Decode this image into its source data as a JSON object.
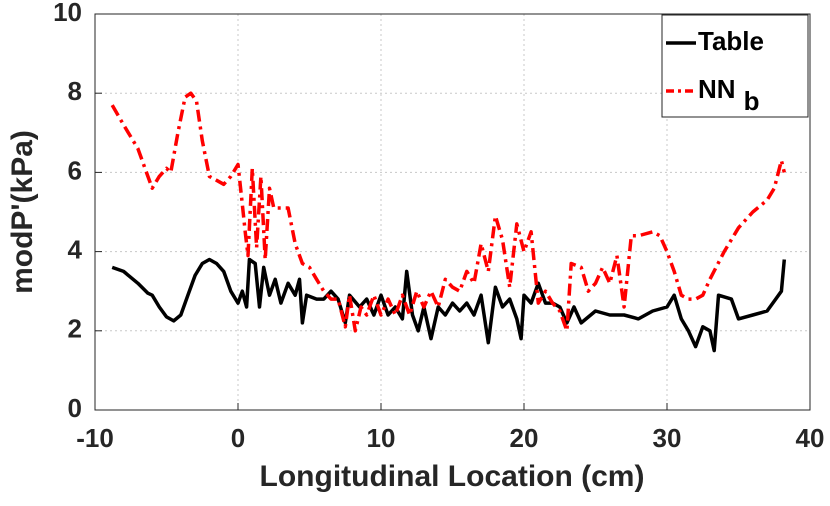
{
  "chart_data": {
    "type": "line",
    "xlabel": "Longitudinal Location (cm)",
    "ylabel": "modP'(kPa)",
    "xlim": [
      -10,
      40
    ],
    "xticks": [
      -10,
      0,
      10,
      20,
      30,
      40
    ],
    "ylim": [
      0,
      10
    ],
    "yticks": [
      0,
      2,
      4,
      6,
      8,
      10
    ],
    "grid": true,
    "legend_position": "upper right",
    "series": [
      {
        "name": "Table",
        "color": "#000000",
        "dash": "solid",
        "x": [
          -8.8,
          -8,
          -7,
          -6.3,
          -6,
          -5.5,
          -5,
          -4.5,
          -4,
          -3.5,
          -3,
          -2.5,
          -2,
          -1.5,
          -1,
          -0.5,
          0,
          0.3,
          0.6,
          0.8,
          1.2,
          1.5,
          1.8,
          2.2,
          2.6,
          3,
          3.5,
          4,
          4.3,
          4.5,
          4.8,
          5.5,
          6,
          6.5,
          7,
          7.5,
          7.8,
          8.5,
          9,
          9.5,
          10,
          10.5,
          11,
          11.5,
          11.8,
          12.2,
          12.6,
          13,
          13.5,
          14,
          14.5,
          15,
          15.5,
          16,
          16.5,
          17,
          17.5,
          18,
          18.5,
          19,
          19.5,
          19.8,
          20,
          20.5,
          21,
          21.5,
          22,
          22.5,
          23,
          23.5,
          24,
          25,
          26,
          27,
          28,
          29,
          30,
          30.5,
          31,
          31.5,
          32,
          32.5,
          33,
          33.3,
          33.6,
          34.5,
          35,
          36,
          37,
          37.6,
          38,
          38.2
        ],
        "values": [
          3.6,
          3.5,
          3.2,
          2.95,
          2.9,
          2.6,
          2.35,
          2.25,
          2.4,
          2.9,
          3.4,
          3.7,
          3.8,
          3.7,
          3.5,
          3.0,
          2.7,
          3.0,
          2.6,
          3.8,
          3.7,
          2.6,
          3.6,
          2.9,
          3.3,
          2.7,
          3.2,
          2.9,
          3.3,
          2.2,
          2.9,
          2.8,
          2.8,
          3.0,
          2.8,
          2.2,
          2.9,
          2.6,
          2.8,
          2.4,
          2.9,
          2.4,
          2.6,
          2.3,
          3.5,
          2.4,
          2.0,
          2.6,
          1.8,
          2.6,
          2.4,
          2.7,
          2.5,
          2.7,
          2.4,
          2.9,
          1.7,
          3.1,
          2.6,
          2.8,
          2.3,
          1.8,
          2.9,
          2.7,
          3.2,
          2.7,
          2.7,
          2.6,
          2.2,
          2.6,
          2.2,
          2.5,
          2.4,
          2.4,
          2.3,
          2.5,
          2.6,
          2.9,
          2.3,
          2.0,
          1.6,
          2.1,
          2.0,
          1.5,
          2.9,
          2.8,
          2.3,
          2.4,
          2.5,
          2.8,
          3.0,
          3.8
        ]
      },
      {
        "name": "NN",
        "subscript": "b",
        "color": "#ff0000",
        "dash": "dashdot",
        "x": [
          -8.8,
          -8,
          -7,
          -6.3,
          -6,
          -5.5,
          -5,
          -4.7,
          -4.2,
          -3.7,
          -3.3,
          -2.9,
          -2.5,
          -2,
          -1.5,
          -1,
          -0.5,
          0,
          0.3,
          0.5,
          0.7,
          1,
          1.3,
          1.6,
          1.9,
          2.2,
          2.5,
          3,
          3.5,
          4,
          4.5,
          5,
          5.5,
          6,
          6.5,
          7,
          7.5,
          7.8,
          8.2,
          8.6,
          9,
          9.5,
          10,
          10.5,
          11,
          11.5,
          12,
          12.5,
          13,
          13.5,
          14,
          14.5,
          15,
          15.5,
          16,
          16.5,
          17,
          17.5,
          18,
          18.5,
          19,
          19.5,
          20,
          20.5,
          21,
          21.5,
          22,
          22.5,
          23,
          23.3,
          24,
          24.5,
          25,
          25.5,
          26,
          26.5,
          27,
          27.5,
          28,
          29,
          29.5,
          30,
          30.5,
          31,
          31.5,
          32,
          32.5,
          33,
          34,
          35,
          36,
          37,
          37.5,
          38,
          38.2
        ],
        "values": [
          7.7,
          7.2,
          6.6,
          5.9,
          5.6,
          5.9,
          6.1,
          6.0,
          7.0,
          7.9,
          8.0,
          7.8,
          6.8,
          5.9,
          5.8,
          5.7,
          5.9,
          6.2,
          5.2,
          4.5,
          3.9,
          6.1,
          4.1,
          5.9,
          3.8,
          5.6,
          5.1,
          5.1,
          5.1,
          4.2,
          3.7,
          3.6,
          3.3,
          3.0,
          2.8,
          2.8,
          2.1,
          2.9,
          2.0,
          2.6,
          2.4,
          2.9,
          2.4,
          2.8,
          2.4,
          2.9,
          2.4,
          3.0,
          2.6,
          3.0,
          2.6,
          3.3,
          3.1,
          3.0,
          3.5,
          3.2,
          4.2,
          3.5,
          4.9,
          4.3,
          3.1,
          4.7,
          4.0,
          4.5,
          2.7,
          3.0,
          2.7,
          2.5,
          2.0,
          3.7,
          3.6,
          3.0,
          3.2,
          3.6,
          3.2,
          3.9,
          2.6,
          4.4,
          4.4,
          4.5,
          4.4,
          4.0,
          3.5,
          2.9,
          2.8,
          2.8,
          2.9,
          3.3,
          4.0,
          4.6,
          5.0,
          5.3,
          5.6,
          6.3,
          6.0
        ]
      }
    ]
  }
}
